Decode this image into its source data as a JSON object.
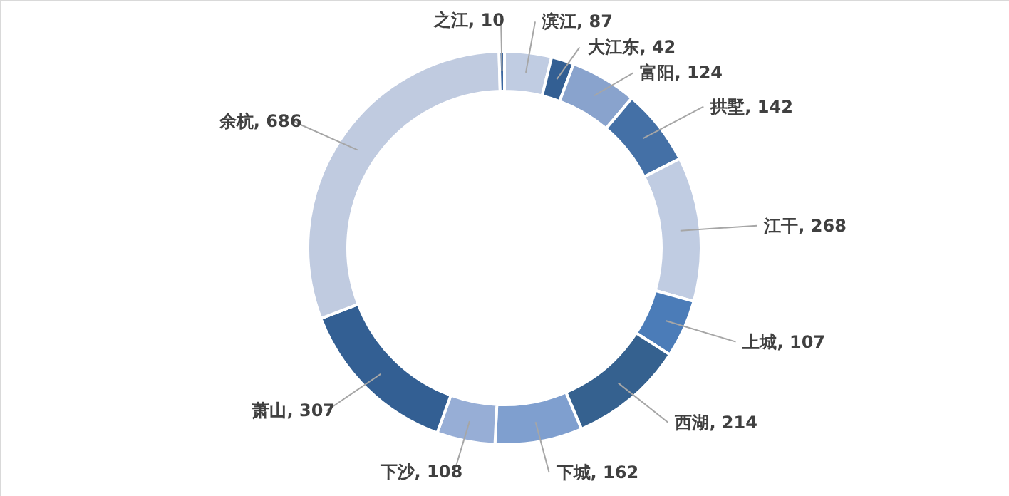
{
  "chart_data": {
    "type": "donut",
    "categories": [
      "滨江",
      "大江东",
      "富阳",
      "拱墅",
      "江干",
      "上城",
      "西湖",
      "下城",
      "下沙",
      "萧山",
      "余杭",
      "之江"
    ],
    "values": [
      87,
      42,
      124,
      142,
      268,
      107,
      214,
      162,
      108,
      307,
      686,
      10
    ],
    "colors": [
      "#c0cce2",
      "#335f93",
      "#89a3cd",
      "#4470a6",
      "#c0cce2",
      "#4b7cb8",
      "#35618f",
      "#7f9fcf",
      "#97aed6",
      "#335f93",
      "#c0cbe0",
      "#3a66a0"
    ],
    "value_labels": [
      ", 87",
      ", 42",
      ", 124",
      ", 142",
      ", 268",
      ", 107",
      ", 214",
      ", 162",
      ", 108",
      ", 307",
      ", 686",
      ", 10"
    ]
  }
}
